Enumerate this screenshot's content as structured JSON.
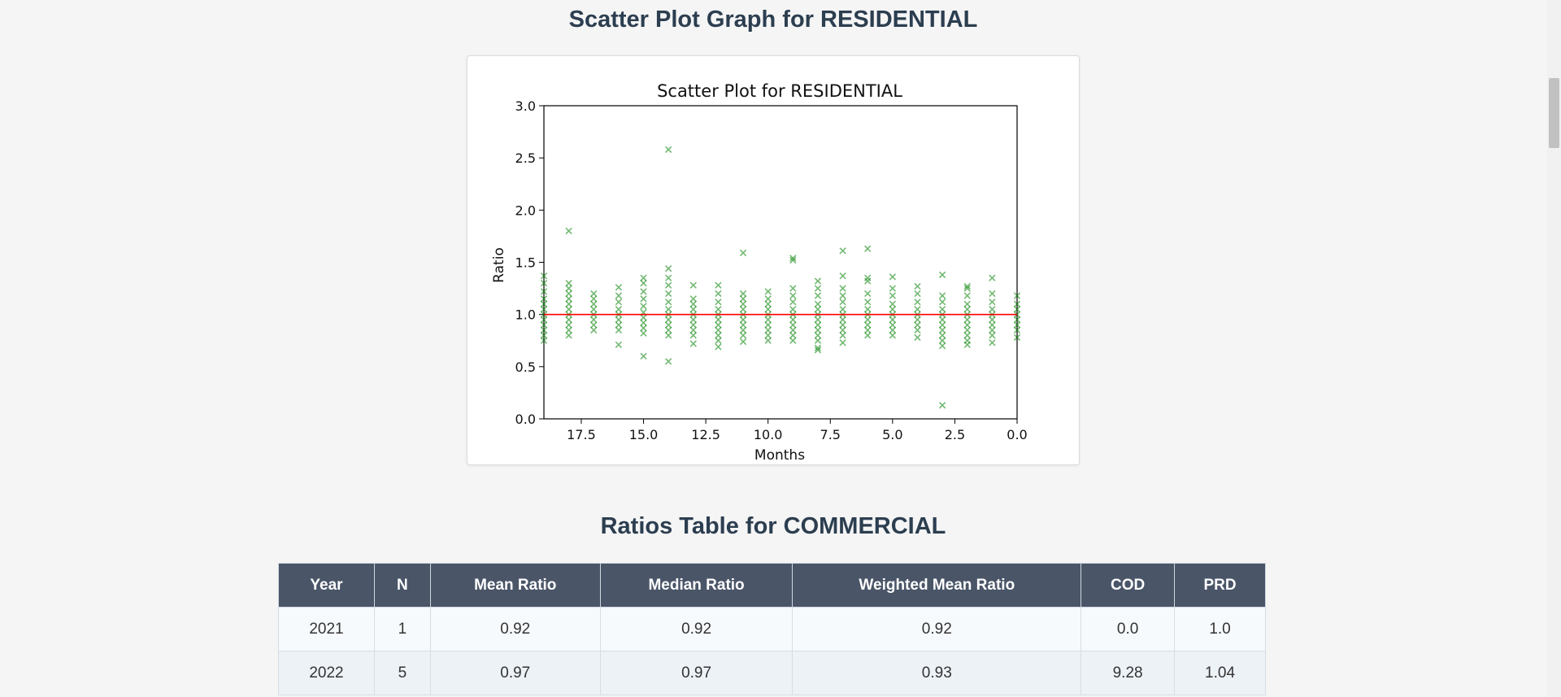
{
  "scatter_section": {
    "heading": "Scatter Plot Graph for RESIDENTIAL"
  },
  "chart_data": {
    "type": "scatter",
    "title": "Scatter Plot for RESIDENTIAL",
    "xlabel": "Months",
    "ylabel": "Ratio",
    "xlim": [
      19,
      0
    ],
    "ylim": [
      0,
      3
    ],
    "x_inverted": true,
    "xticks": [
      "17.5",
      "15.0",
      "12.5",
      "10.0",
      "7.5",
      "5.0",
      "2.5",
      "0.0"
    ],
    "yticks": [
      "0.0",
      "0.5",
      "1.0",
      "1.5",
      "2.0",
      "2.5",
      "3.0"
    ],
    "grid": false,
    "marker": "x",
    "marker_color": "#008000",
    "reference_line": {
      "y": 1.0,
      "color": "#ff0000"
    },
    "series": [
      {
        "points": [
          [
            19,
            1.37
          ],
          [
            19,
            1.3
          ],
          [
            19,
            1.22
          ],
          [
            19,
            1.15
          ],
          [
            19,
            1.1
          ],
          [
            19,
            1.05
          ],
          [
            19,
            1.0
          ],
          [
            19,
            0.95
          ],
          [
            19,
            0.9
          ],
          [
            19,
            0.85
          ],
          [
            19,
            0.8
          ],
          [
            19,
            0.75
          ],
          [
            18,
            1.8
          ],
          [
            18,
            1.3
          ],
          [
            18,
            1.25
          ],
          [
            18,
            1.2
          ],
          [
            18,
            1.15
          ],
          [
            18,
            1.1
          ],
          [
            18,
            1.05
          ],
          [
            18,
            1.0
          ],
          [
            18,
            0.95
          ],
          [
            18,
            0.9
          ],
          [
            18,
            0.85
          ],
          [
            18,
            0.8
          ],
          [
            17,
            1.2
          ],
          [
            17,
            1.15
          ],
          [
            17,
            1.1
          ],
          [
            17,
            1.05
          ],
          [
            17,
            1.0
          ],
          [
            17,
            0.95
          ],
          [
            17,
            0.9
          ],
          [
            17,
            0.85
          ],
          [
            16,
            1.26
          ],
          [
            16,
            1.18
          ],
          [
            16,
            1.12
          ],
          [
            16,
            1.05
          ],
          [
            16,
            1.0
          ],
          [
            16,
            0.95
          ],
          [
            16,
            0.9
          ],
          [
            16,
            0.85
          ],
          [
            16,
            0.71
          ],
          [
            15,
            1.35
          ],
          [
            15,
            1.3
          ],
          [
            15,
            1.22
          ],
          [
            15,
            1.15
          ],
          [
            15,
            1.08
          ],
          [
            15,
            1.02
          ],
          [
            15,
            0.97
          ],
          [
            15,
            0.92
          ],
          [
            15,
            0.87
          ],
          [
            15,
            0.82
          ],
          [
            15,
            0.6
          ],
          [
            14,
            2.58
          ],
          [
            14,
            1.44
          ],
          [
            14,
            1.35
          ],
          [
            14,
            1.28
          ],
          [
            14,
            1.2
          ],
          [
            14,
            1.12
          ],
          [
            14,
            1.05
          ],
          [
            14,
            1.0
          ],
          [
            14,
            0.95
          ],
          [
            14,
            0.9
          ],
          [
            14,
            0.85
          ],
          [
            14,
            0.8
          ],
          [
            14,
            0.55
          ],
          [
            13,
            1.28
          ],
          [
            13,
            1.15
          ],
          [
            13,
            1.1
          ],
          [
            13,
            1.05
          ],
          [
            13,
            1.0
          ],
          [
            13,
            0.95
          ],
          [
            13,
            0.9
          ],
          [
            13,
            0.85
          ],
          [
            13,
            0.8
          ],
          [
            13,
            0.72
          ],
          [
            12,
            1.28
          ],
          [
            12,
            1.2
          ],
          [
            12,
            1.12
          ],
          [
            12,
            1.05
          ],
          [
            12,
            1.0
          ],
          [
            12,
            0.95
          ],
          [
            12,
            0.9
          ],
          [
            12,
            0.85
          ],
          [
            12,
            0.8
          ],
          [
            12,
            0.75
          ],
          [
            12,
            0.69
          ],
          [
            11,
            1.59
          ],
          [
            11,
            1.2
          ],
          [
            11,
            1.15
          ],
          [
            11,
            1.1
          ],
          [
            11,
            1.05
          ],
          [
            11,
            1.0
          ],
          [
            11,
            0.95
          ],
          [
            11,
            0.9
          ],
          [
            11,
            0.85
          ],
          [
            11,
            0.8
          ],
          [
            11,
            0.74
          ],
          [
            10,
            1.22
          ],
          [
            10,
            1.15
          ],
          [
            10,
            1.1
          ],
          [
            10,
            1.05
          ],
          [
            10,
            1.0
          ],
          [
            10,
            0.95
          ],
          [
            10,
            0.9
          ],
          [
            10,
            0.85
          ],
          [
            10,
            0.8
          ],
          [
            10,
            0.75
          ],
          [
            9,
            1.54
          ],
          [
            9,
            1.52
          ],
          [
            9,
            1.25
          ],
          [
            9,
            1.18
          ],
          [
            9,
            1.12
          ],
          [
            9,
            1.05
          ],
          [
            9,
            1.0
          ],
          [
            9,
            0.95
          ],
          [
            9,
            0.9
          ],
          [
            9,
            0.85
          ],
          [
            9,
            0.8
          ],
          [
            9,
            0.75
          ],
          [
            8,
            1.32
          ],
          [
            8,
            1.25
          ],
          [
            8,
            1.18
          ],
          [
            8,
            1.1
          ],
          [
            8,
            1.05
          ],
          [
            8,
            1.0
          ],
          [
            8,
            0.95
          ],
          [
            8,
            0.9
          ],
          [
            8,
            0.85
          ],
          [
            8,
            0.8
          ],
          [
            8,
            0.75
          ],
          [
            8,
            0.68
          ],
          [
            8,
            0.66
          ],
          [
            7,
            1.61
          ],
          [
            7,
            1.37
          ],
          [
            7,
            1.25
          ],
          [
            7,
            1.18
          ],
          [
            7,
            1.12
          ],
          [
            7,
            1.05
          ],
          [
            7,
            1.0
          ],
          [
            7,
            0.95
          ],
          [
            7,
            0.9
          ],
          [
            7,
            0.85
          ],
          [
            7,
            0.8
          ],
          [
            7,
            0.73
          ],
          [
            6,
            1.63
          ],
          [
            6,
            1.35
          ],
          [
            6,
            1.32
          ],
          [
            6,
            1.2
          ],
          [
            6,
            1.12
          ],
          [
            6,
            1.05
          ],
          [
            6,
            1.0
          ],
          [
            6,
            0.95
          ],
          [
            6,
            0.9
          ],
          [
            6,
            0.85
          ],
          [
            6,
            0.8
          ],
          [
            5,
            1.36
          ],
          [
            5,
            1.25
          ],
          [
            5,
            1.18
          ],
          [
            5,
            1.1
          ],
          [
            5,
            1.05
          ],
          [
            5,
            1.0
          ],
          [
            5,
            0.95
          ],
          [
            5,
            0.9
          ],
          [
            5,
            0.85
          ],
          [
            5,
            0.8
          ],
          [
            4,
            1.27
          ],
          [
            4,
            1.2
          ],
          [
            4,
            1.12
          ],
          [
            4,
            1.05
          ],
          [
            4,
            1.0
          ],
          [
            4,
            0.95
          ],
          [
            4,
            0.9
          ],
          [
            4,
            0.85
          ],
          [
            4,
            0.78
          ],
          [
            3,
            1.38
          ],
          [
            3,
            1.18
          ],
          [
            3,
            1.12
          ],
          [
            3,
            1.05
          ],
          [
            3,
            1.0
          ],
          [
            3,
            0.95
          ],
          [
            3,
            0.9
          ],
          [
            3,
            0.85
          ],
          [
            3,
            0.8
          ],
          [
            3,
            0.75
          ],
          [
            3,
            0.7
          ],
          [
            3,
            0.13
          ],
          [
            2,
            1.27
          ],
          [
            2,
            1.25
          ],
          [
            2,
            1.18
          ],
          [
            2,
            1.1
          ],
          [
            2,
            1.05
          ],
          [
            2,
            1.0
          ],
          [
            2,
            0.95
          ],
          [
            2,
            0.9
          ],
          [
            2,
            0.85
          ],
          [
            2,
            0.8
          ],
          [
            2,
            0.75
          ],
          [
            2,
            0.71
          ],
          [
            1,
            1.35
          ],
          [
            1,
            1.2
          ],
          [
            1,
            1.12
          ],
          [
            1,
            1.05
          ],
          [
            1,
            1.0
          ],
          [
            1,
            0.95
          ],
          [
            1,
            0.9
          ],
          [
            1,
            0.85
          ],
          [
            1,
            0.8
          ],
          [
            1,
            0.73
          ],
          [
            0,
            1.18
          ],
          [
            0,
            1.1
          ],
          [
            0,
            1.05
          ],
          [
            0,
            1.0
          ],
          [
            0,
            0.95
          ],
          [
            0,
            0.9
          ],
          [
            0,
            0.85
          ],
          [
            0,
            0.78
          ]
        ]
      }
    ]
  },
  "ratios_section": {
    "heading": "Ratios Table for COMMERCIAL",
    "columns": [
      "Year",
      "N",
      "Mean Ratio",
      "Median Ratio",
      "Weighted Mean Ratio",
      "COD",
      "PRD"
    ],
    "rows": [
      [
        "2021",
        "1",
        "0.92",
        "0.92",
        "0.92",
        "0.0",
        "1.0"
      ],
      [
        "2022",
        "5",
        "0.97",
        "0.97",
        "0.93",
        "9.28",
        "1.04"
      ]
    ]
  }
}
